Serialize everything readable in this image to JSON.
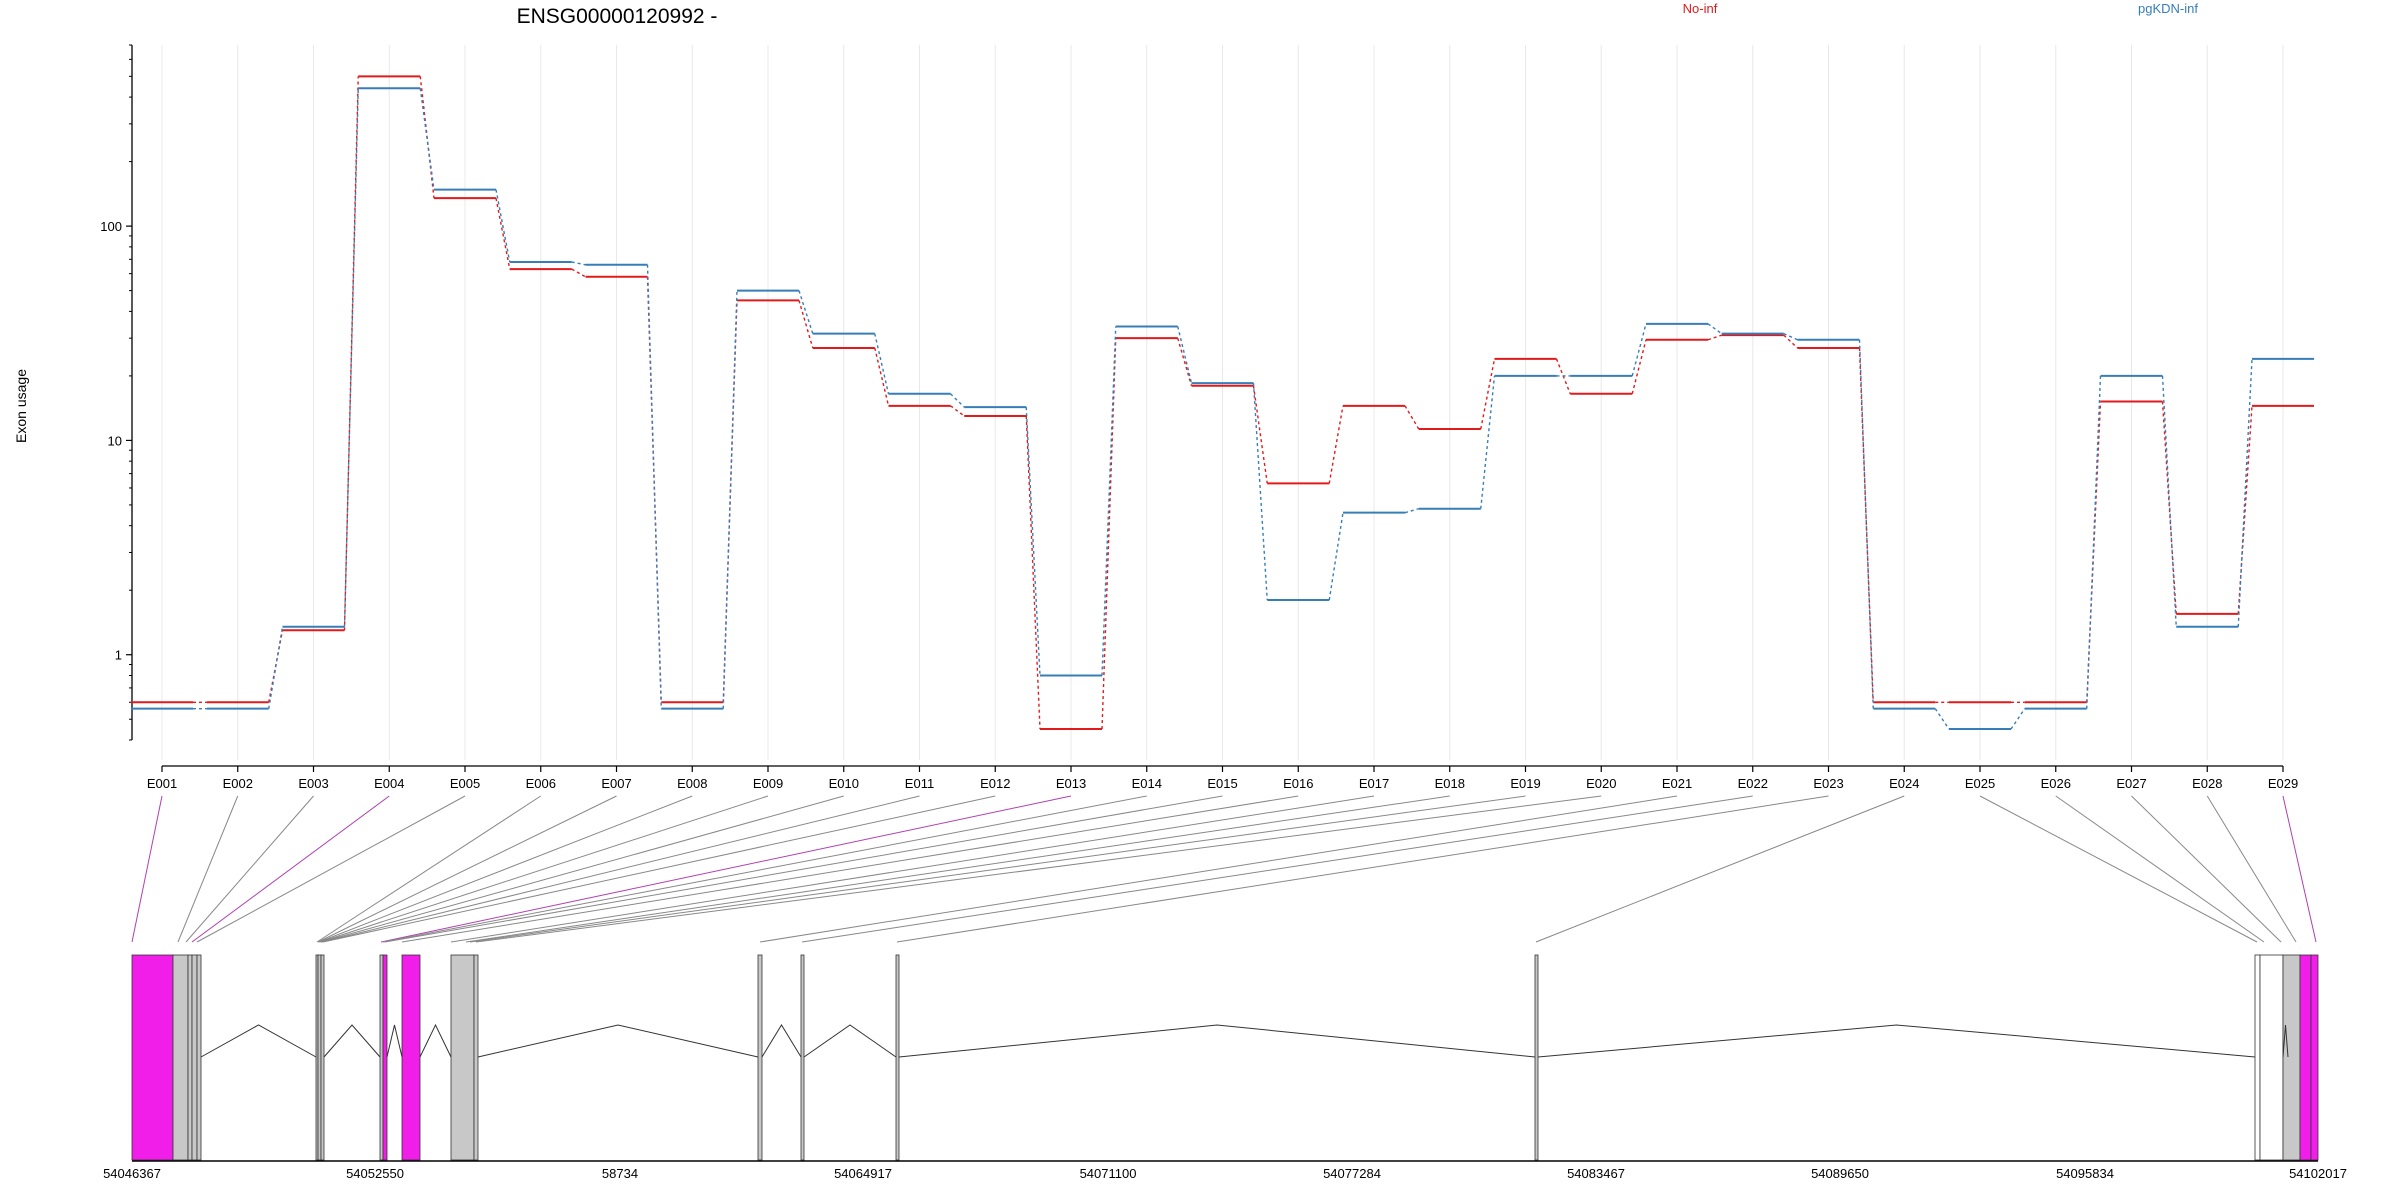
{
  "chart_data": {
    "type": "line",
    "title": "ENSG00000120992 -",
    "ylabel": "Exon usage",
    "xlabel": "",
    "y_scale": "log",
    "ylim": [
      0.4,
      700
    ],
    "y_ticks": [
      1,
      10,
      100
    ],
    "y_tick_labels": [
      "1",
      "10",
      "100"
    ],
    "grid": "vertical lines at exon positions",
    "legend_placement": "top",
    "categories": [
      "E001",
      "E002",
      "E003",
      "E004",
      "E005",
      "E006",
      "E007",
      "E008",
      "E009",
      "E010",
      "E011",
      "E012",
      "E013",
      "E014",
      "E015",
      "E016",
      "E017",
      "E018",
      "E019",
      "E020",
      "E021",
      "E022",
      "E023",
      "E024",
      "E025",
      "E026",
      "E027",
      "E028",
      "E029"
    ],
    "series": [
      {
        "name": "No-inf",
        "color": "#e31a1c",
        "values": [
          0.6,
          0.6,
          1.3,
          500,
          135,
          63,
          58,
          0.6,
          45,
          27,
          14.5,
          13,
          0.45,
          30,
          18,
          6.3,
          14.5,
          11.3,
          24,
          16.5,
          29.5,
          31,
          27,
          0.6,
          0.6,
          0.6,
          15.2,
          1.55,
          14.5
        ]
      },
      {
        "name": "pgKDN-inf",
        "color": "#377eb8",
        "values": [
          0.56,
          0.56,
          1.35,
          440,
          148,
          68,
          66,
          0.56,
          50,
          31.5,
          16.5,
          14.3,
          0.8,
          34,
          18.5,
          1.8,
          4.6,
          4.8,
          20,
          20,
          35,
          31.5,
          29.5,
          0.56,
          0.45,
          0.56,
          20,
          1.35,
          24
        ]
      }
    ],
    "gene_model": {
      "axis_labels": [
        "54046367",
        "54052550",
        "58734",
        "54064917",
        "54071100",
        "54077284",
        "54083467",
        "54089650",
        "54095834",
        "54102017"
      ],
      "exon_colors": [
        "magenta",
        "gray",
        "gray",
        "magenta",
        "gray",
        "gray",
        "gray",
        "gray",
        "gray",
        "gray",
        "gray",
        "gray",
        "magenta",
        "gray",
        "gray",
        "gray",
        "gray",
        "gray",
        "gray",
        "gray",
        "gray",
        "gray",
        "gray",
        "gray",
        "gray",
        "gray",
        "gray",
        "gray",
        "magenta"
      ],
      "colors": {
        "significant": "#f01ee8",
        "normal": "#c8c8c8"
      }
    }
  }
}
